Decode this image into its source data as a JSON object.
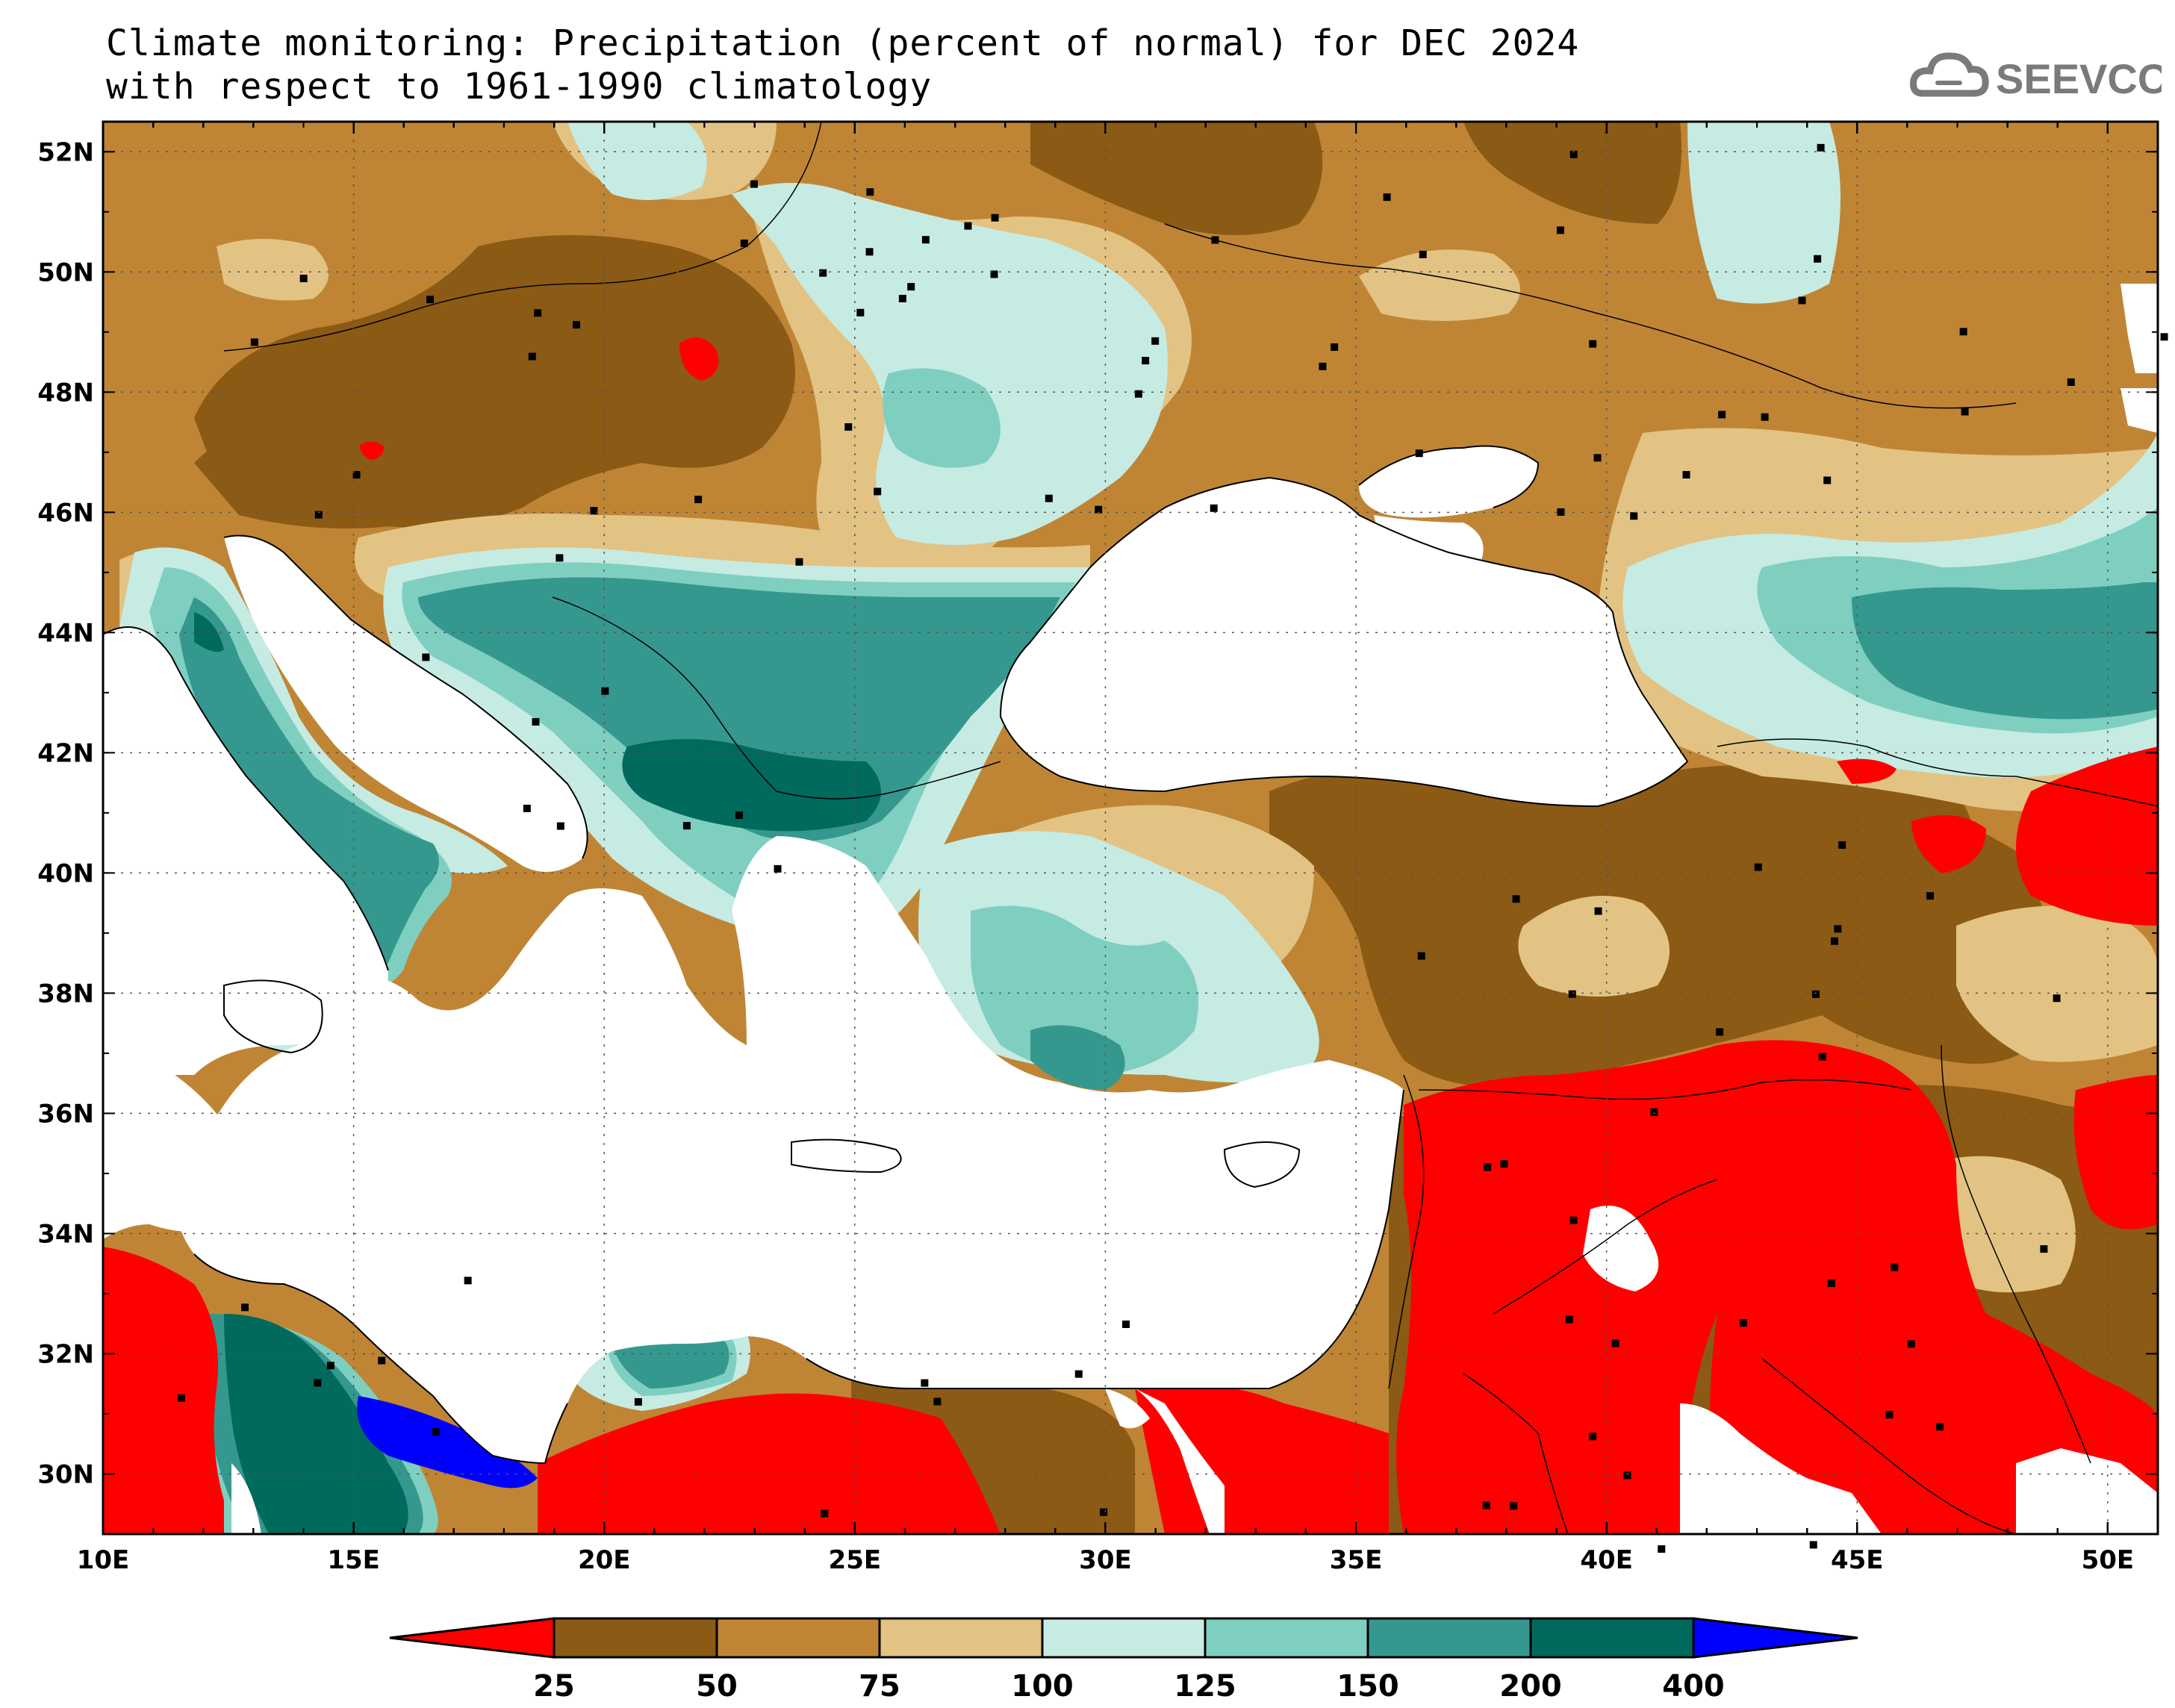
{
  "title": {
    "line1": "Climate monitoring: Precipitation (percent of normal) for DEC 2024",
    "line2": "with respect to 1961-1990 climatology"
  },
  "logo": {
    "text": "SEEVCCC",
    "icon": "cloud-icon"
  },
  "map": {
    "lon_range": [
      10,
      51
    ],
    "lat_range": [
      29,
      52.5
    ],
    "lon_ticks": [
      "10E",
      "15E",
      "20E",
      "25E",
      "30E",
      "35E",
      "40E",
      "45E",
      "50E"
    ],
    "lat_ticks": [
      "30N",
      "32N",
      "34N",
      "36N",
      "38N",
      "40N",
      "42N",
      "44N",
      "46N",
      "48N",
      "50N",
      "52N"
    ]
  },
  "colorbar": {
    "labels": [
      "25",
      "50",
      "75",
      "100",
      "125",
      "150",
      "200",
      "400"
    ],
    "colors": [
      "#ff0000",
      "#8b5a14",
      "#bf8535",
      "#e3c383",
      "#c6ebe3",
      "#7fcfc1",
      "#35988f",
      "#006a5c",
      "#0000ff"
    ]
  },
  "legend_colors": {
    "lt25": "#ff0000",
    "c25_50": "#8b5a14",
    "c50_75": "#bf8535",
    "c75_100": "#e3c383",
    "c100_125": "#c6ebe3",
    "c125_150": "#7fcfc1",
    "c150_200": "#35988f",
    "c200_400": "#006a5c",
    "gt400": "#0000ff"
  }
}
